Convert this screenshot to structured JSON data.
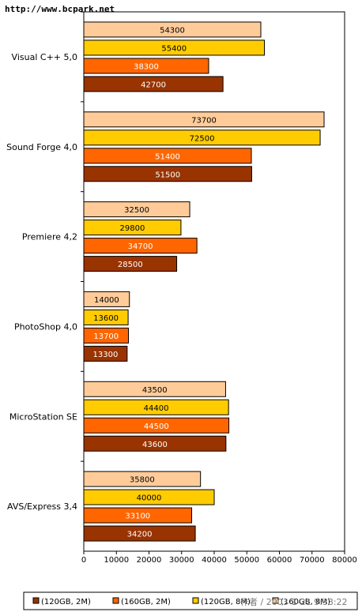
{
  "watermark": "http://www.bcpark.net",
  "stamp": "作者 / 2003-1-21 9:33:22",
  "chart_data": {
    "type": "bar",
    "orientation": "horizontal",
    "categories": [
      "Visual C++ 5,0",
      "Sound Forge 4,0",
      "Premiere 4,2",
      "PhotoShop 4,0",
      "MicroStation SE",
      "AVS/Express 3,4"
    ],
    "series": [
      {
        "name": "(120GB, 2M)",
        "color": "#993300",
        "text_color": "#ffffff",
        "values": [
          42700,
          51500,
          28500,
          13300,
          43600,
          34200
        ]
      },
      {
        "name": "(160GB, 2M)",
        "color": "#ff6600",
        "text_color": "#ffffff",
        "values": [
          38300,
          51400,
          34700,
          13700,
          44500,
          33100
        ]
      },
      {
        "name": "(120GB, 8M)",
        "color": "#ffcc00",
        "text_color": "#000000",
        "values": [
          55400,
          72500,
          29800,
          13600,
          44400,
          40000
        ]
      },
      {
        "name": "(160GB, 8M)",
        "color": "#ffcc99",
        "text_color": "#000000",
        "values": [
          54300,
          73700,
          32500,
          14000,
          43500,
          35800
        ]
      }
    ],
    "xlim": [
      0,
      80000
    ],
    "xticks": [
      "0",
      "10000",
      "20000",
      "30000",
      "40000",
      "50000",
      "60000",
      "70000",
      "80000"
    ],
    "grid": false,
    "legend": "bottom"
  }
}
